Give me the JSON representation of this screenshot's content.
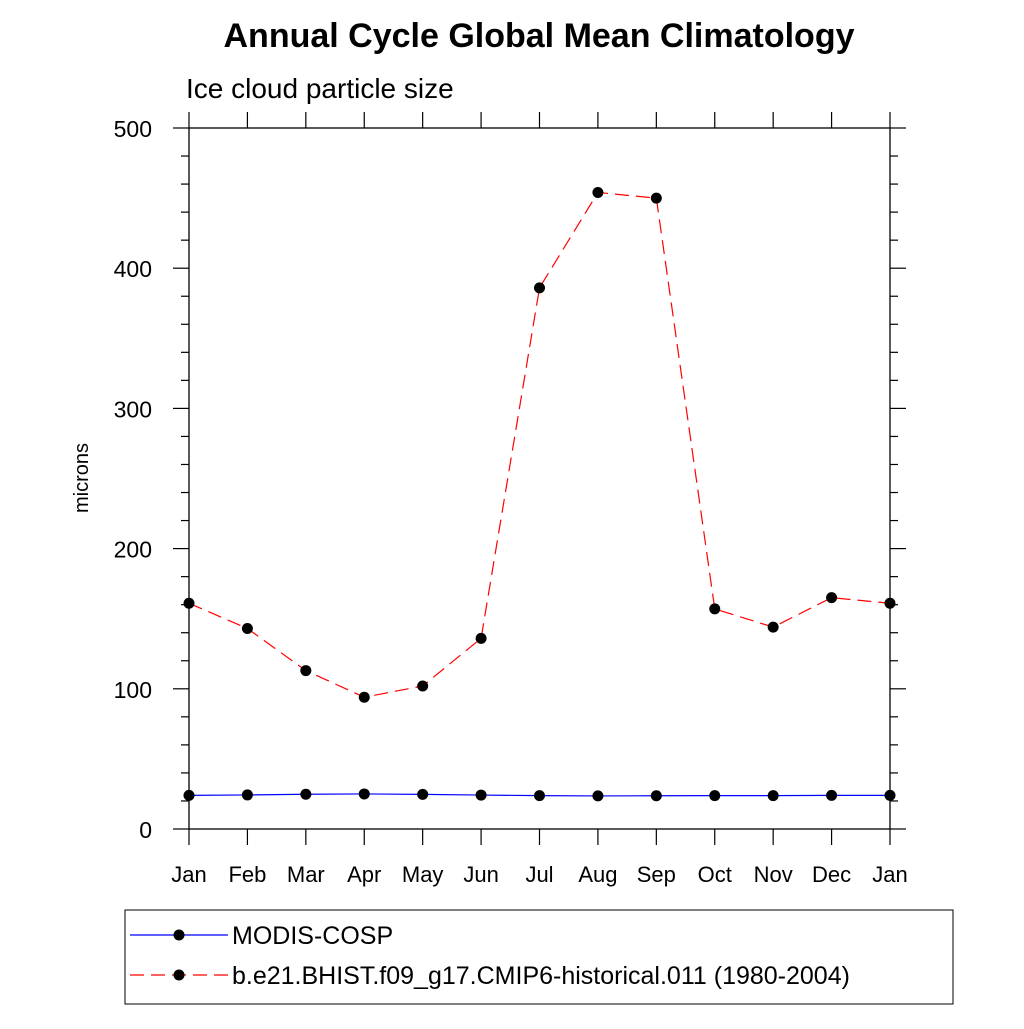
{
  "chart_data": {
    "type": "line",
    "title": "Annual Cycle Global Mean Climatology",
    "subtitle": "Ice cloud particle size",
    "ylabel": "microns",
    "xlabel": "",
    "categories": [
      "Jan",
      "Feb",
      "Mar",
      "Apr",
      "May",
      "Jun",
      "Jul",
      "Aug",
      "Sep",
      "Oct",
      "Nov",
      "Dec",
      "Jan"
    ],
    "ylim": [
      0,
      500
    ],
    "yticks": [
      0,
      100,
      200,
      300,
      400,
      500
    ],
    "grid": false,
    "legend_position": "bottom",
    "series": [
      {
        "name": "MODIS-COSP",
        "color": "#0000ff",
        "line_style": "solid",
        "marker": "filled-circle",
        "values": [
          24,
          24.3,
          24.8,
          25,
          24.7,
          24.2,
          23.8,
          23.6,
          23.7,
          23.8,
          23.8,
          24,
          24
        ]
      },
      {
        "name": "b.e21.BHIST.f09_g17.CMIP6-historical.011 (1980-2004)",
        "color": "#ff0000",
        "line_style": "dashed",
        "marker": "filled-circle",
        "values": [
          161,
          143,
          113,
          94,
          102,
          136,
          386,
          454,
          450,
          157,
          144,
          165,
          161
        ]
      }
    ]
  }
}
